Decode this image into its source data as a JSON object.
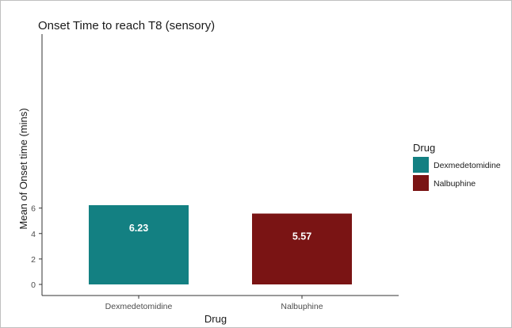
{
  "chart_data": {
    "type": "bar",
    "title": "Onset Time to reach T8 (sensory)",
    "xlabel": "Drug",
    "ylabel": "Mean of Onset time (mins)",
    "categories": [
      "Dexmedetomidine",
      "Nalbuphine"
    ],
    "values": [
      6.23,
      5.57
    ],
    "data_labels": [
      "6.23",
      "5.57"
    ],
    "colors": [
      "#138082",
      "#7a1414"
    ],
    "ylim": [
      0,
      6.5
    ],
    "yticks": [
      0,
      2,
      4,
      6
    ],
    "grid": false,
    "legend": {
      "title": "Drug",
      "placement": "right",
      "entries": [
        "Dexmedetomidine",
        "Nalbuphine"
      ]
    }
  }
}
